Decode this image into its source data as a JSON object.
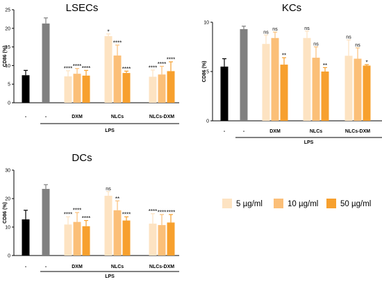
{
  "colors": {
    "control": "#000000",
    "lps": "#808080",
    "c5": "#fde3c2",
    "c10": "#fbbf78",
    "c50": "#f7a02e",
    "axis": "#000000"
  },
  "legend": {
    "items": [
      {
        "label": "5 µg/ml",
        "color_key": "c5"
      },
      {
        "label": "10 µg/ml",
        "color_key": "c10"
      },
      {
        "label": "50 µg/ml",
        "color_key": "c50"
      }
    ]
  },
  "chart_data": [
    {
      "type": "bar",
      "title": "LSECs",
      "ylabel": "CD86 (%)",
      "ylim": [
        0,
        25
      ],
      "yticks": [
        0,
        5,
        10,
        15,
        20,
        25
      ],
      "grid": false,
      "x_labels": [
        "-",
        "-",
        "DXM",
        "NLCs",
        "NLCs-DXM"
      ],
      "bracket_label": "LPS",
      "groups": [
        {
          "label": "-",
          "bars": [
            {
              "series": "control",
              "value": 7.4,
              "error": 1.3,
              "sig": ""
            }
          ]
        },
        {
          "label": "-",
          "bars": [
            {
              "series": "lps",
              "value": 21.3,
              "error": 1.5,
              "sig": ""
            }
          ]
        },
        {
          "label": "DXM",
          "bars": [
            {
              "series": "c5",
              "value": 7.1,
              "error": 1.5,
              "sig": "****"
            },
            {
              "series": "c10",
              "value": 7.8,
              "error": 1.4,
              "sig": "****"
            },
            {
              "series": "c50",
              "value": 7.3,
              "error": 1.4,
              "sig": "****"
            }
          ]
        },
        {
          "label": "NLCs",
          "bars": [
            {
              "series": "c5",
              "value": 17.9,
              "error": 0.6,
              "sig": "*"
            },
            {
              "series": "c10",
              "value": 12.7,
              "error": 2.8,
              "sig": "****"
            },
            {
              "series": "c50",
              "value": 8.0,
              "error": 0.5,
              "sig": "****"
            }
          ]
        },
        {
          "label": "NLCs-DXM",
          "bars": [
            {
              "series": "c5",
              "value": 7.0,
              "error": 1.8,
              "sig": "****"
            },
            {
              "series": "c10",
              "value": 7.6,
              "error": 2.2,
              "sig": "****"
            },
            {
              "series": "c50",
              "value": 8.5,
              "error": 2.5,
              "sig": "****"
            }
          ]
        }
      ]
    },
    {
      "type": "bar",
      "title": "KCs",
      "ylabel": "CD86 (%)",
      "ylim": [
        0,
        10
      ],
      "yticks": [
        0,
        5,
        10
      ],
      "grid": false,
      "x_labels": [
        "-",
        "-",
        "DXM",
        "NLCs",
        "NLCs-DXM"
      ],
      "bracket_label": "LPS",
      "groups": [
        {
          "label": "-",
          "bars": [
            {
              "series": "control",
              "value": 5.5,
              "error": 0.8,
              "sig": ""
            }
          ]
        },
        {
          "label": "-",
          "bars": [
            {
              "series": "lps",
              "value": 9.3,
              "error": 0.3,
              "sig": ""
            }
          ]
        },
        {
          "label": "DXM",
          "bars": [
            {
              "series": "c5",
              "value": 7.8,
              "error": 0.9,
              "sig": "ns"
            },
            {
              "series": "c10",
              "value": 8.4,
              "error": 0.6,
              "sig": "ns"
            },
            {
              "series": "c50",
              "value": 5.7,
              "error": 0.7,
              "sig": "**"
            }
          ]
        },
        {
          "label": "NLCs",
          "bars": [
            {
              "series": "c5",
              "value": 8.4,
              "error": 0.7,
              "sig": "ns"
            },
            {
              "series": "c10",
              "value": 6.4,
              "error": 1.1,
              "sig": "ns"
            },
            {
              "series": "c50",
              "value": 5.0,
              "error": 0.4,
              "sig": "**"
            }
          ]
        },
        {
          "label": "NLCs-DXM",
          "bars": [
            {
              "series": "c5",
              "value": 6.6,
              "error": 1.6,
              "sig": "ns"
            },
            {
              "series": "c10",
              "value": 6.3,
              "error": 1.1,
              "sig": "ns"
            },
            {
              "series": "c50",
              "value": 5.6,
              "error": 0.1,
              "sig": "*"
            }
          ]
        }
      ]
    },
    {
      "type": "bar",
      "title": "DCs",
      "ylabel": "CD86 (%)",
      "ylim": [
        0,
        30
      ],
      "yticks": [
        0,
        10,
        20,
        30
      ],
      "grid": false,
      "x_labels": [
        "-",
        "-",
        "DXM",
        "NLCs",
        "NLCs-DXM"
      ],
      "bracket_label": "LPS",
      "groups": [
        {
          "label": "-",
          "bars": [
            {
              "series": "control",
              "value": 12.7,
              "error": 3.2,
              "sig": ""
            }
          ]
        },
        {
          "label": "-",
          "bars": [
            {
              "series": "lps",
              "value": 23.4,
              "error": 1.5,
              "sig": ""
            }
          ]
        },
        {
          "label": "DXM",
          "bars": [
            {
              "series": "c5",
              "value": 10.9,
              "error": 2.7,
              "sig": "****"
            },
            {
              "series": "c10",
              "value": 11.8,
              "error": 3.3,
              "sig": "****"
            },
            {
              "series": "c50",
              "value": 10.3,
              "error": 2.0,
              "sig": "****"
            }
          ]
        },
        {
          "label": "NLCs",
          "bars": [
            {
              "series": "c5",
              "value": 21.0,
              "error": 1.5,
              "sig": "ns"
            },
            {
              "series": "c10",
              "value": 15.9,
              "error": 3.3,
              "sig": "**"
            },
            {
              "series": "c50",
              "value": 12.3,
              "error": 1.3,
              "sig": "****"
            }
          ]
        },
        {
          "label": "NLCs-DXM",
          "bars": [
            {
              "series": "c5",
              "value": 11.2,
              "error": 3.5,
              "sig": "****"
            },
            {
              "series": "c10",
              "value": 10.7,
              "error": 3.7,
              "sig": "****"
            },
            {
              "series": "c50",
              "value": 11.6,
              "error": 2.8,
              "sig": "****"
            }
          ]
        }
      ]
    }
  ]
}
